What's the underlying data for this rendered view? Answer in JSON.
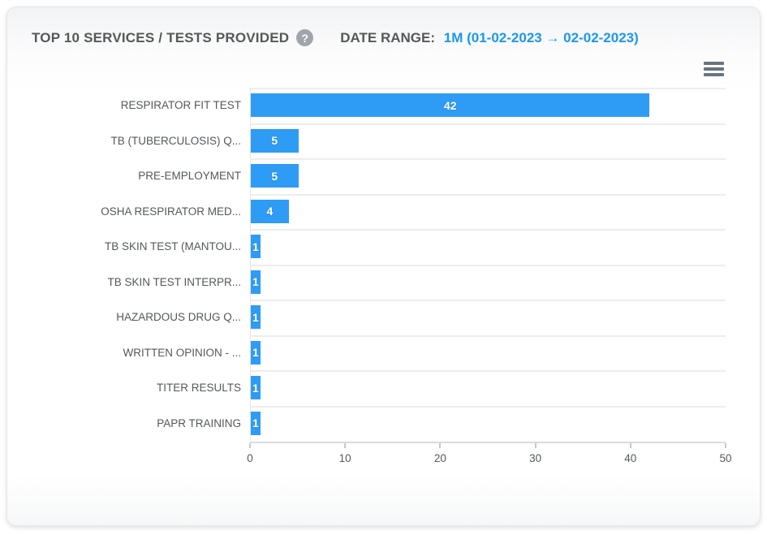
{
  "header": {
    "title": "TOP 10 SERVICES / TESTS PROVIDED",
    "help_glyph": "?",
    "date_range_label": "DATE RANGE:",
    "date_range_value": "1M (01-02-2023 → 02-02-2023)"
  },
  "toolbar": {
    "menu_icon": "hamburger-menu-icon"
  },
  "colors": {
    "bar": "#2e9cf5",
    "accent_text": "#1a97ef",
    "heading_text": "#54585b",
    "grid_line": "#ededed",
    "axis_line": "#dbdbdb",
    "help_icon_bg": "#9fa5aa"
  },
  "chart_data": {
    "type": "bar",
    "orientation": "horizontal",
    "title": "TOP 10 SERVICES / TESTS PROVIDED",
    "categories": [
      "RESPIRATOR FIT TEST",
      "TB (TUBERCULOSIS) Q...",
      "PRE-EMPLOYMENT",
      "OSHA RESPIRATOR MED...",
      "TB SKIN TEST (MANTOU...",
      "TB SKIN TEST INTERPR...",
      "HAZARDOUS DRUG Q...",
      "WRITTEN OPINION - ...",
      "TITER RESULTS",
      "PAPR TRAINING"
    ],
    "values": [
      42,
      5,
      5,
      4,
      1,
      1,
      1,
      1,
      1,
      1
    ],
    "xlabel": "",
    "ylabel": "",
    "xlim": [
      0,
      50
    ],
    "x_ticks": [
      0,
      10,
      20,
      30,
      40,
      50
    ],
    "grid": true,
    "legend": false,
    "data_labels": true
  }
}
